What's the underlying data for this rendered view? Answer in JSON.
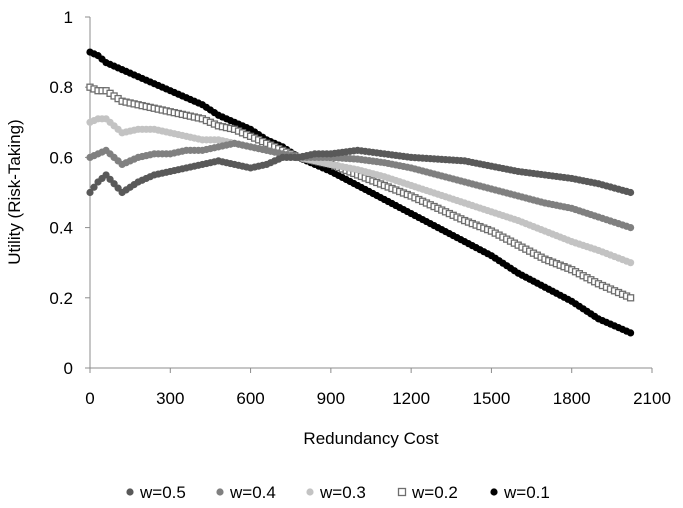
{
  "chart_data": {
    "type": "scatter",
    "xlabel": "Redundancy Cost",
    "ylabel": "Utility (Risk-Taking)",
    "xlim": [
      0,
      2100
    ],
    "ylim": [
      0,
      1
    ],
    "x_ticks": [
      "0",
      "300",
      "600",
      "900",
      "1200",
      "1500",
      "1800",
      "2100"
    ],
    "y_ticks": [
      "0",
      "0.2",
      "0.4",
      "0.6",
      "0.8",
      "1"
    ],
    "legend_position": "bottom",
    "grid": false,
    "series": [
      {
        "name": "w=0.5",
        "color": "#595959",
        "marker": "filled-circle",
        "points": [
          [
            0,
            0.5
          ],
          [
            30,
            0.53
          ],
          [
            60,
            0.55
          ],
          [
            120,
            0.5
          ],
          [
            180,
            0.53
          ],
          [
            240,
            0.55
          ],
          [
            300,
            0.56
          ],
          [
            360,
            0.57
          ],
          [
            420,
            0.58
          ],
          [
            480,
            0.59
          ],
          [
            540,
            0.58
          ],
          [
            600,
            0.57
          ],
          [
            660,
            0.58
          ],
          [
            720,
            0.6
          ],
          [
            780,
            0.6
          ],
          [
            840,
            0.61
          ],
          [
            900,
            0.61
          ],
          [
            1000,
            0.62
          ],
          [
            1100,
            0.61
          ],
          [
            1200,
            0.6
          ],
          [
            1300,
            0.595
          ],
          [
            1400,
            0.59
          ],
          [
            1500,
            0.575
          ],
          [
            1600,
            0.56
          ],
          [
            1700,
            0.55
          ],
          [
            1800,
            0.54
          ],
          [
            1900,
            0.525
          ],
          [
            2020,
            0.5
          ]
        ]
      },
      {
        "name": "w=0.4",
        "color": "#808080",
        "marker": "filled-circle",
        "points": [
          [
            0,
            0.6
          ],
          [
            30,
            0.61
          ],
          [
            60,
            0.62
          ],
          [
            120,
            0.58
          ],
          [
            180,
            0.6
          ],
          [
            240,
            0.61
          ],
          [
            300,
            0.61
          ],
          [
            360,
            0.62
          ],
          [
            420,
            0.62
          ],
          [
            480,
            0.63
          ],
          [
            540,
            0.64
          ],
          [
            600,
            0.63
          ],
          [
            660,
            0.62
          ],
          [
            720,
            0.61
          ],
          [
            780,
            0.6
          ],
          [
            840,
            0.6
          ],
          [
            900,
            0.6
          ],
          [
            1000,
            0.595
          ],
          [
            1100,
            0.585
          ],
          [
            1200,
            0.57
          ],
          [
            1300,
            0.55
          ],
          [
            1400,
            0.53
          ],
          [
            1500,
            0.51
          ],
          [
            1600,
            0.49
          ],
          [
            1700,
            0.47
          ],
          [
            1800,
            0.455
          ],
          [
            1900,
            0.43
          ],
          [
            2020,
            0.4
          ]
        ]
      },
      {
        "name": "w=0.3",
        "color": "#c3c3c3",
        "marker": "filled-circle",
        "points": [
          [
            0,
            0.7
          ],
          [
            30,
            0.71
          ],
          [
            60,
            0.71
          ],
          [
            120,
            0.67
          ],
          [
            180,
            0.68
          ],
          [
            240,
            0.68
          ],
          [
            300,
            0.67
          ],
          [
            360,
            0.66
          ],
          [
            420,
            0.65
          ],
          [
            480,
            0.65
          ],
          [
            540,
            0.64
          ],
          [
            600,
            0.63
          ],
          [
            660,
            0.62
          ],
          [
            720,
            0.61
          ],
          [
            780,
            0.6
          ],
          [
            840,
            0.59
          ],
          [
            900,
            0.58
          ],
          [
            1000,
            0.565
          ],
          [
            1100,
            0.545
          ],
          [
            1200,
            0.52
          ],
          [
            1300,
            0.495
          ],
          [
            1400,
            0.47
          ],
          [
            1500,
            0.445
          ],
          [
            1600,
            0.42
          ],
          [
            1700,
            0.39
          ],
          [
            1800,
            0.36
          ],
          [
            1900,
            0.335
          ],
          [
            2020,
            0.3
          ]
        ]
      },
      {
        "name": "w=0.2",
        "color": "#6e6e6e",
        "marker": "open-square",
        "points": [
          [
            0,
            0.8
          ],
          [
            30,
            0.79
          ],
          [
            60,
            0.79
          ],
          [
            120,
            0.76
          ],
          [
            180,
            0.75
          ],
          [
            240,
            0.74
          ],
          [
            300,
            0.73
          ],
          [
            360,
            0.72
          ],
          [
            420,
            0.71
          ],
          [
            480,
            0.69
          ],
          [
            540,
            0.68
          ],
          [
            600,
            0.66
          ],
          [
            660,
            0.64
          ],
          [
            720,
            0.62
          ],
          [
            780,
            0.6
          ],
          [
            840,
            0.59
          ],
          [
            900,
            0.58
          ],
          [
            1000,
            0.55
          ],
          [
            1100,
            0.52
          ],
          [
            1200,
            0.49
          ],
          [
            1300,
            0.455
          ],
          [
            1400,
            0.42
          ],
          [
            1500,
            0.39
          ],
          [
            1600,
            0.35
          ],
          [
            1700,
            0.31
          ],
          [
            1800,
            0.28
          ],
          [
            1900,
            0.24
          ],
          [
            2020,
            0.2
          ]
        ]
      },
      {
        "name": "w=0.1",
        "color": "#000000",
        "marker": "filled-circle",
        "points": [
          [
            0,
            0.9
          ],
          [
            30,
            0.89
          ],
          [
            60,
            0.87
          ],
          [
            120,
            0.85
          ],
          [
            180,
            0.83
          ],
          [
            240,
            0.81
          ],
          [
            300,
            0.79
          ],
          [
            360,
            0.77
          ],
          [
            420,
            0.75
          ],
          [
            480,
            0.72
          ],
          [
            540,
            0.7
          ],
          [
            600,
            0.68
          ],
          [
            660,
            0.65
          ],
          [
            720,
            0.63
          ],
          [
            780,
            0.6
          ],
          [
            840,
            0.58
          ],
          [
            900,
            0.56
          ],
          [
            1000,
            0.52
          ],
          [
            1100,
            0.48
          ],
          [
            1200,
            0.44
          ],
          [
            1300,
            0.4
          ],
          [
            1400,
            0.36
          ],
          [
            1500,
            0.32
          ],
          [
            1600,
            0.27
          ],
          [
            1700,
            0.23
          ],
          [
            1800,
            0.19
          ],
          [
            1900,
            0.14
          ],
          [
            2020,
            0.1
          ]
        ]
      }
    ]
  }
}
